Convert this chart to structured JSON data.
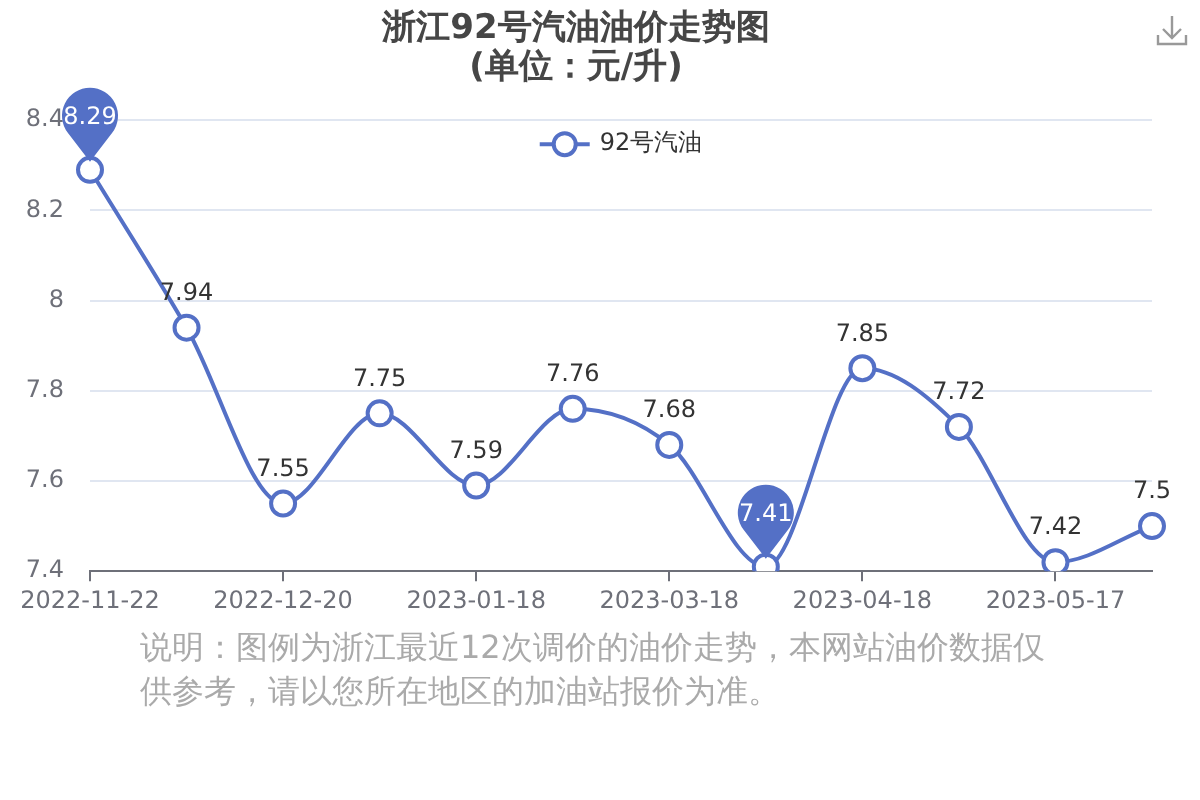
{
  "chart_data": {
    "type": "line",
    "title": "浙江92号汽油油价走势图",
    "subtitle": "(单位：元/升)",
    "categories": [
      "2022-11-22",
      null,
      "2022-12-20",
      null,
      "2023-01-18",
      null,
      "2023-03-18",
      null,
      "2023-04-18",
      null,
      "2023-05-17",
      null
    ],
    "series": [
      {
        "name": "92号汽油",
        "color": "#5470c6",
        "values": [
          8.29,
          7.94,
          7.55,
          7.75,
          7.59,
          7.76,
          7.68,
          7.41,
          7.85,
          7.72,
          7.42,
          7.5
        ]
      }
    ],
    "ylim": [
      7.4,
      8.4
    ],
    "yticks": [
      7.4,
      7.6,
      7.8,
      8,
      8.2,
      8.4
    ],
    "grid": "y",
    "legend": "top",
    "marker": "circle",
    "line_style": "solid",
    "data_labels": true,
    "annotations": [
      "说明：图例为浙江最近12次调价的油价走势，本网站油价数据仅供参考，请以您所在地区的加油站报价为准。"
    ]
  }
}
